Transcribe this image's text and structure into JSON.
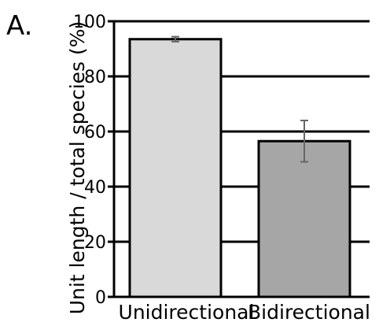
{
  "panel_label": "A.",
  "chart_data": {
    "type": "bar",
    "categories": [
      "Unidirectional",
      "Bidirectional"
    ],
    "values": [
      93.5,
      56.5
    ],
    "error_bars": [
      {
        "low": 92.6,
        "high": 94.4
      },
      {
        "low": 49,
        "high": 64
      }
    ],
    "title": "",
    "xlabel": "",
    "ylabel": "Unit length / total species (%)",
    "ylim": [
      0,
      100
    ],
    "yticks": [
      0,
      20,
      40,
      60,
      80,
      100
    ],
    "grid": "horizontal",
    "bar_colors": [
      "#d9d9d9",
      "#a6a6a6"
    ],
    "bar_edge_color": "#000000",
    "error_bar_color": "#666666"
  }
}
